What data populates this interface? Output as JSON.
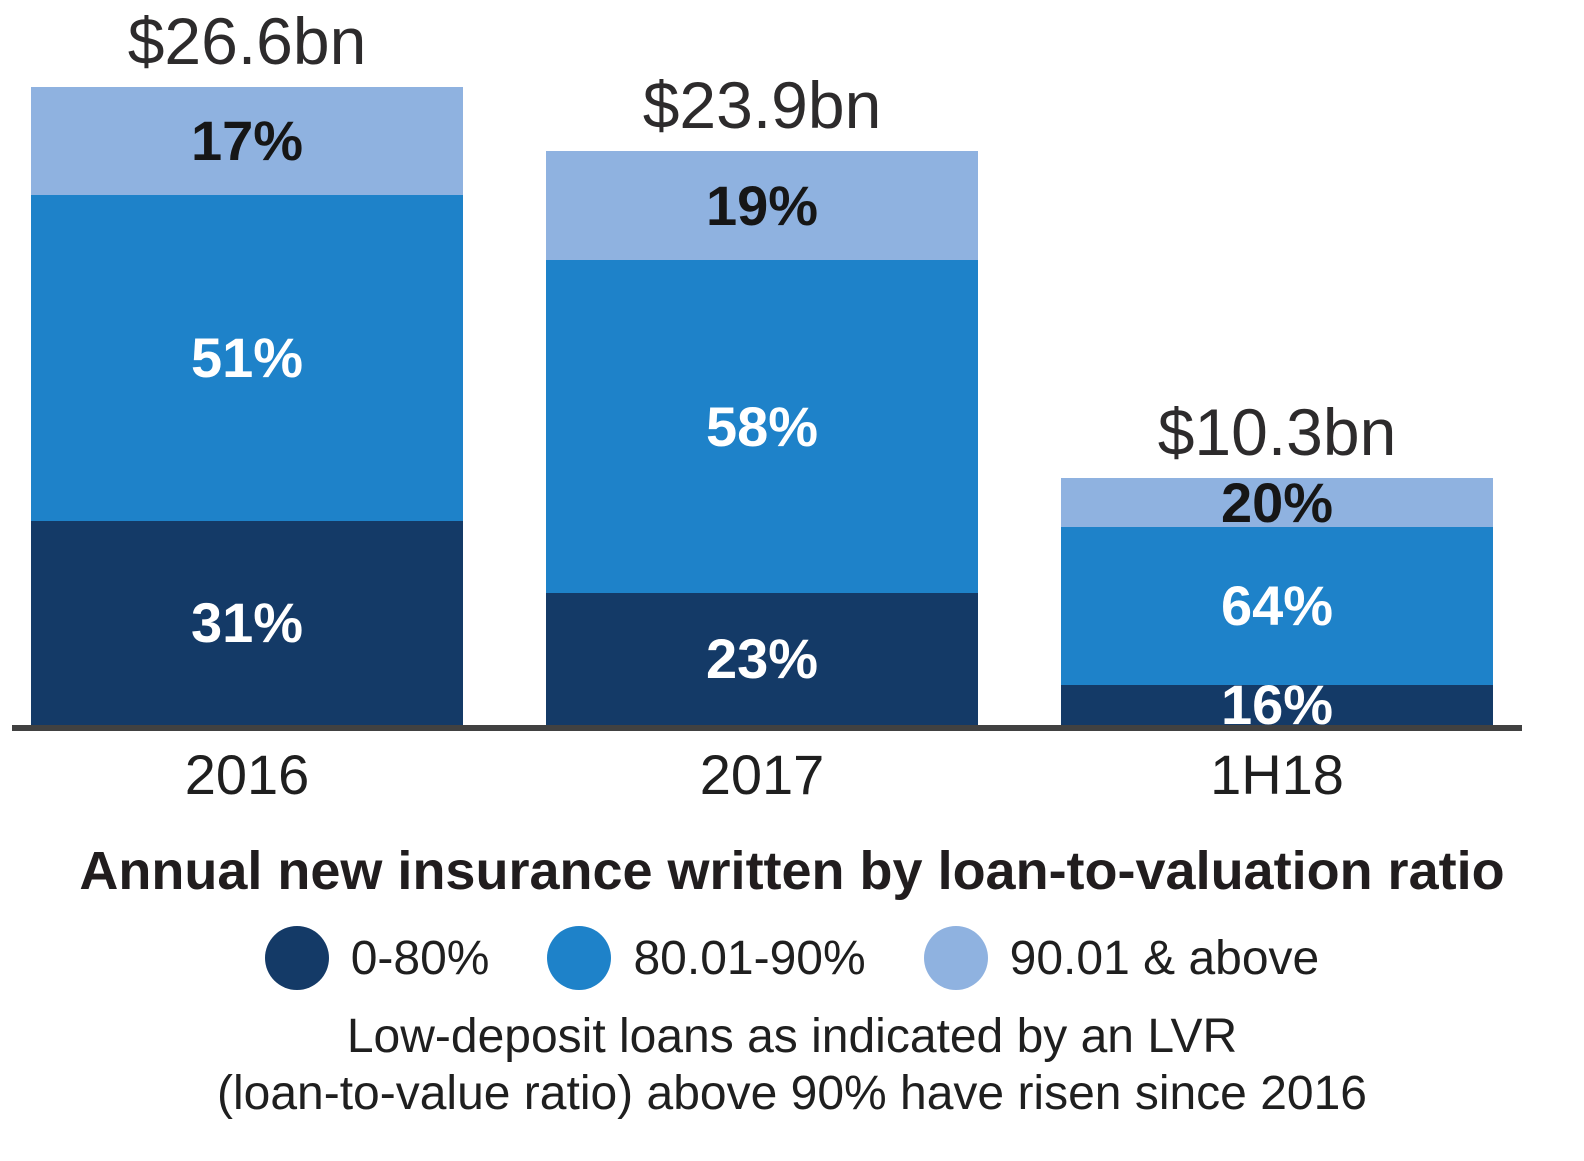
{
  "chart_data": {
    "type": "bar",
    "stacked": true,
    "grid": false,
    "legend_position": "bottom",
    "title": "Annual new insurance written by loan-to-valuation ratio",
    "caption_line1": "Low-deposit loans as indicated by an LVR",
    "caption_line2": "(loan-to-value ratio) above 90% have risen since 2016",
    "categories": [
      "2016",
      "2017",
      "1H18"
    ],
    "totals": [
      "$26.6bn",
      "$23.9bn",
      "$10.3bn"
    ],
    "total_values_bn": [
      26.6,
      23.9,
      10.3
    ],
    "unit": "percent of annual new insurance written",
    "series": [
      {
        "name": "0-80%",
        "color": "#143a67",
        "label_color": "#ffffff",
        "values": [
          31,
          23,
          16
        ],
        "labels": [
          "31%",
          "23%",
          "16%"
        ]
      },
      {
        "name": "80.01-90%",
        "color": "#1e82c9",
        "label_color": "#ffffff",
        "values": [
          51,
          58,
          64
        ],
        "labels": [
          "51%",
          "58%",
          "64%"
        ]
      },
      {
        "name": "90.01 & above",
        "color": "#8fb2e0",
        "label_color": "#161616",
        "values": [
          17,
          19,
          20
        ],
        "labels": [
          "17%",
          "19%",
          "20%"
        ]
      }
    ],
    "colors": {
      "axis": "#414141",
      "title_text": "#211d1e",
      "value_label_text": "#2d2b2c"
    }
  }
}
